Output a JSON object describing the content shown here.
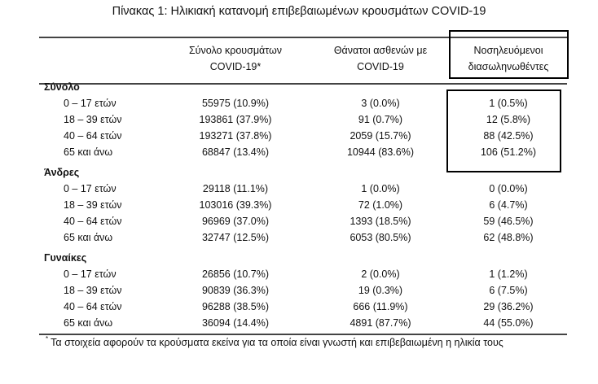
{
  "title": "Πίνακας 1: Ηλικιακή κατανομή επιβεβαιωμένων κρουσμάτων COVID-19",
  "headers": {
    "col1": [
      "Σύνολο κρουσμάτων",
      "COVID-19*"
    ],
    "col2": [
      "Θάνατοι ασθενών με",
      "COVID-19"
    ],
    "col3": [
      "Νοσηλευόμενοι",
      "διασωληνωθέντες"
    ]
  },
  "groups": [
    {
      "label": "Σύνολο",
      "rows": [
        {
          "age": "0 – 17 ετών",
          "cases": "55975 (10.9%)",
          "deaths": "3 (0.0%)",
          "intubated": "1 (0.5%)"
        },
        {
          "age": "18 – 39 ετών",
          "cases": "193861 (37.9%)",
          "deaths": "91 (0.7%)",
          "intubated": "12 (5.8%)"
        },
        {
          "age": "40 – 64 ετών",
          "cases": "193271 (37.8%)",
          "deaths": "2059 (15.7%)",
          "intubated": "88 (42.5%)"
        },
        {
          "age": "65 και άνω",
          "cases": "68847 (13.4%)",
          "deaths": "10944 (83.6%)",
          "intubated": "106 (51.2%)"
        }
      ]
    },
    {
      "label": "Άνδρες",
      "rows": [
        {
          "age": "0 – 17 ετών",
          "cases": "29118 (11.1%)",
          "deaths": "1 (0.0%)",
          "intubated": "0 (0.0%)"
        },
        {
          "age": "18 – 39 ετών",
          "cases": "103016 (39.3%)",
          "deaths": "72 (1.0%)",
          "intubated": "6 (4.7%)"
        },
        {
          "age": "40 – 64 ετών",
          "cases": "96969 (37.0%)",
          "deaths": "1393 (18.5%)",
          "intubated": "59 (46.5%)"
        },
        {
          "age": "65 και άνω",
          "cases": "32747 (12.5%)",
          "deaths": "6053 (80.5%)",
          "intubated": "62 (48.8%)"
        }
      ]
    },
    {
      "label": "Γυναίκες",
      "rows": [
        {
          "age": "0 – 17 ετών",
          "cases": "26856 (10.7%)",
          "deaths": "2 (0.0%)",
          "intubated": "1 (1.2%)"
        },
        {
          "age": "18 – 39 ετών",
          "cases": "90839 (36.3%)",
          "deaths": "19 (0.3%)",
          "intubated": "6 (7.5%)"
        },
        {
          "age": "40 – 64 ετών",
          "cases": "96288 (38.5%)",
          "deaths": "666 (11.9%)",
          "intubated": "29 (36.2%)"
        },
        {
          "age": "65 και άνω",
          "cases": "36094 (14.4%)",
          "deaths": "4891 (87.7%)",
          "intubated": "44 (55.0%)"
        }
      ]
    }
  ],
  "footnote": {
    "mark": "*",
    "text": "Τα στοιχεία αφορούν τα κρούσματα εκείνα για τα οποία είναι γνωστή και επιβεβαιωμένη η ηλικία τους"
  }
}
